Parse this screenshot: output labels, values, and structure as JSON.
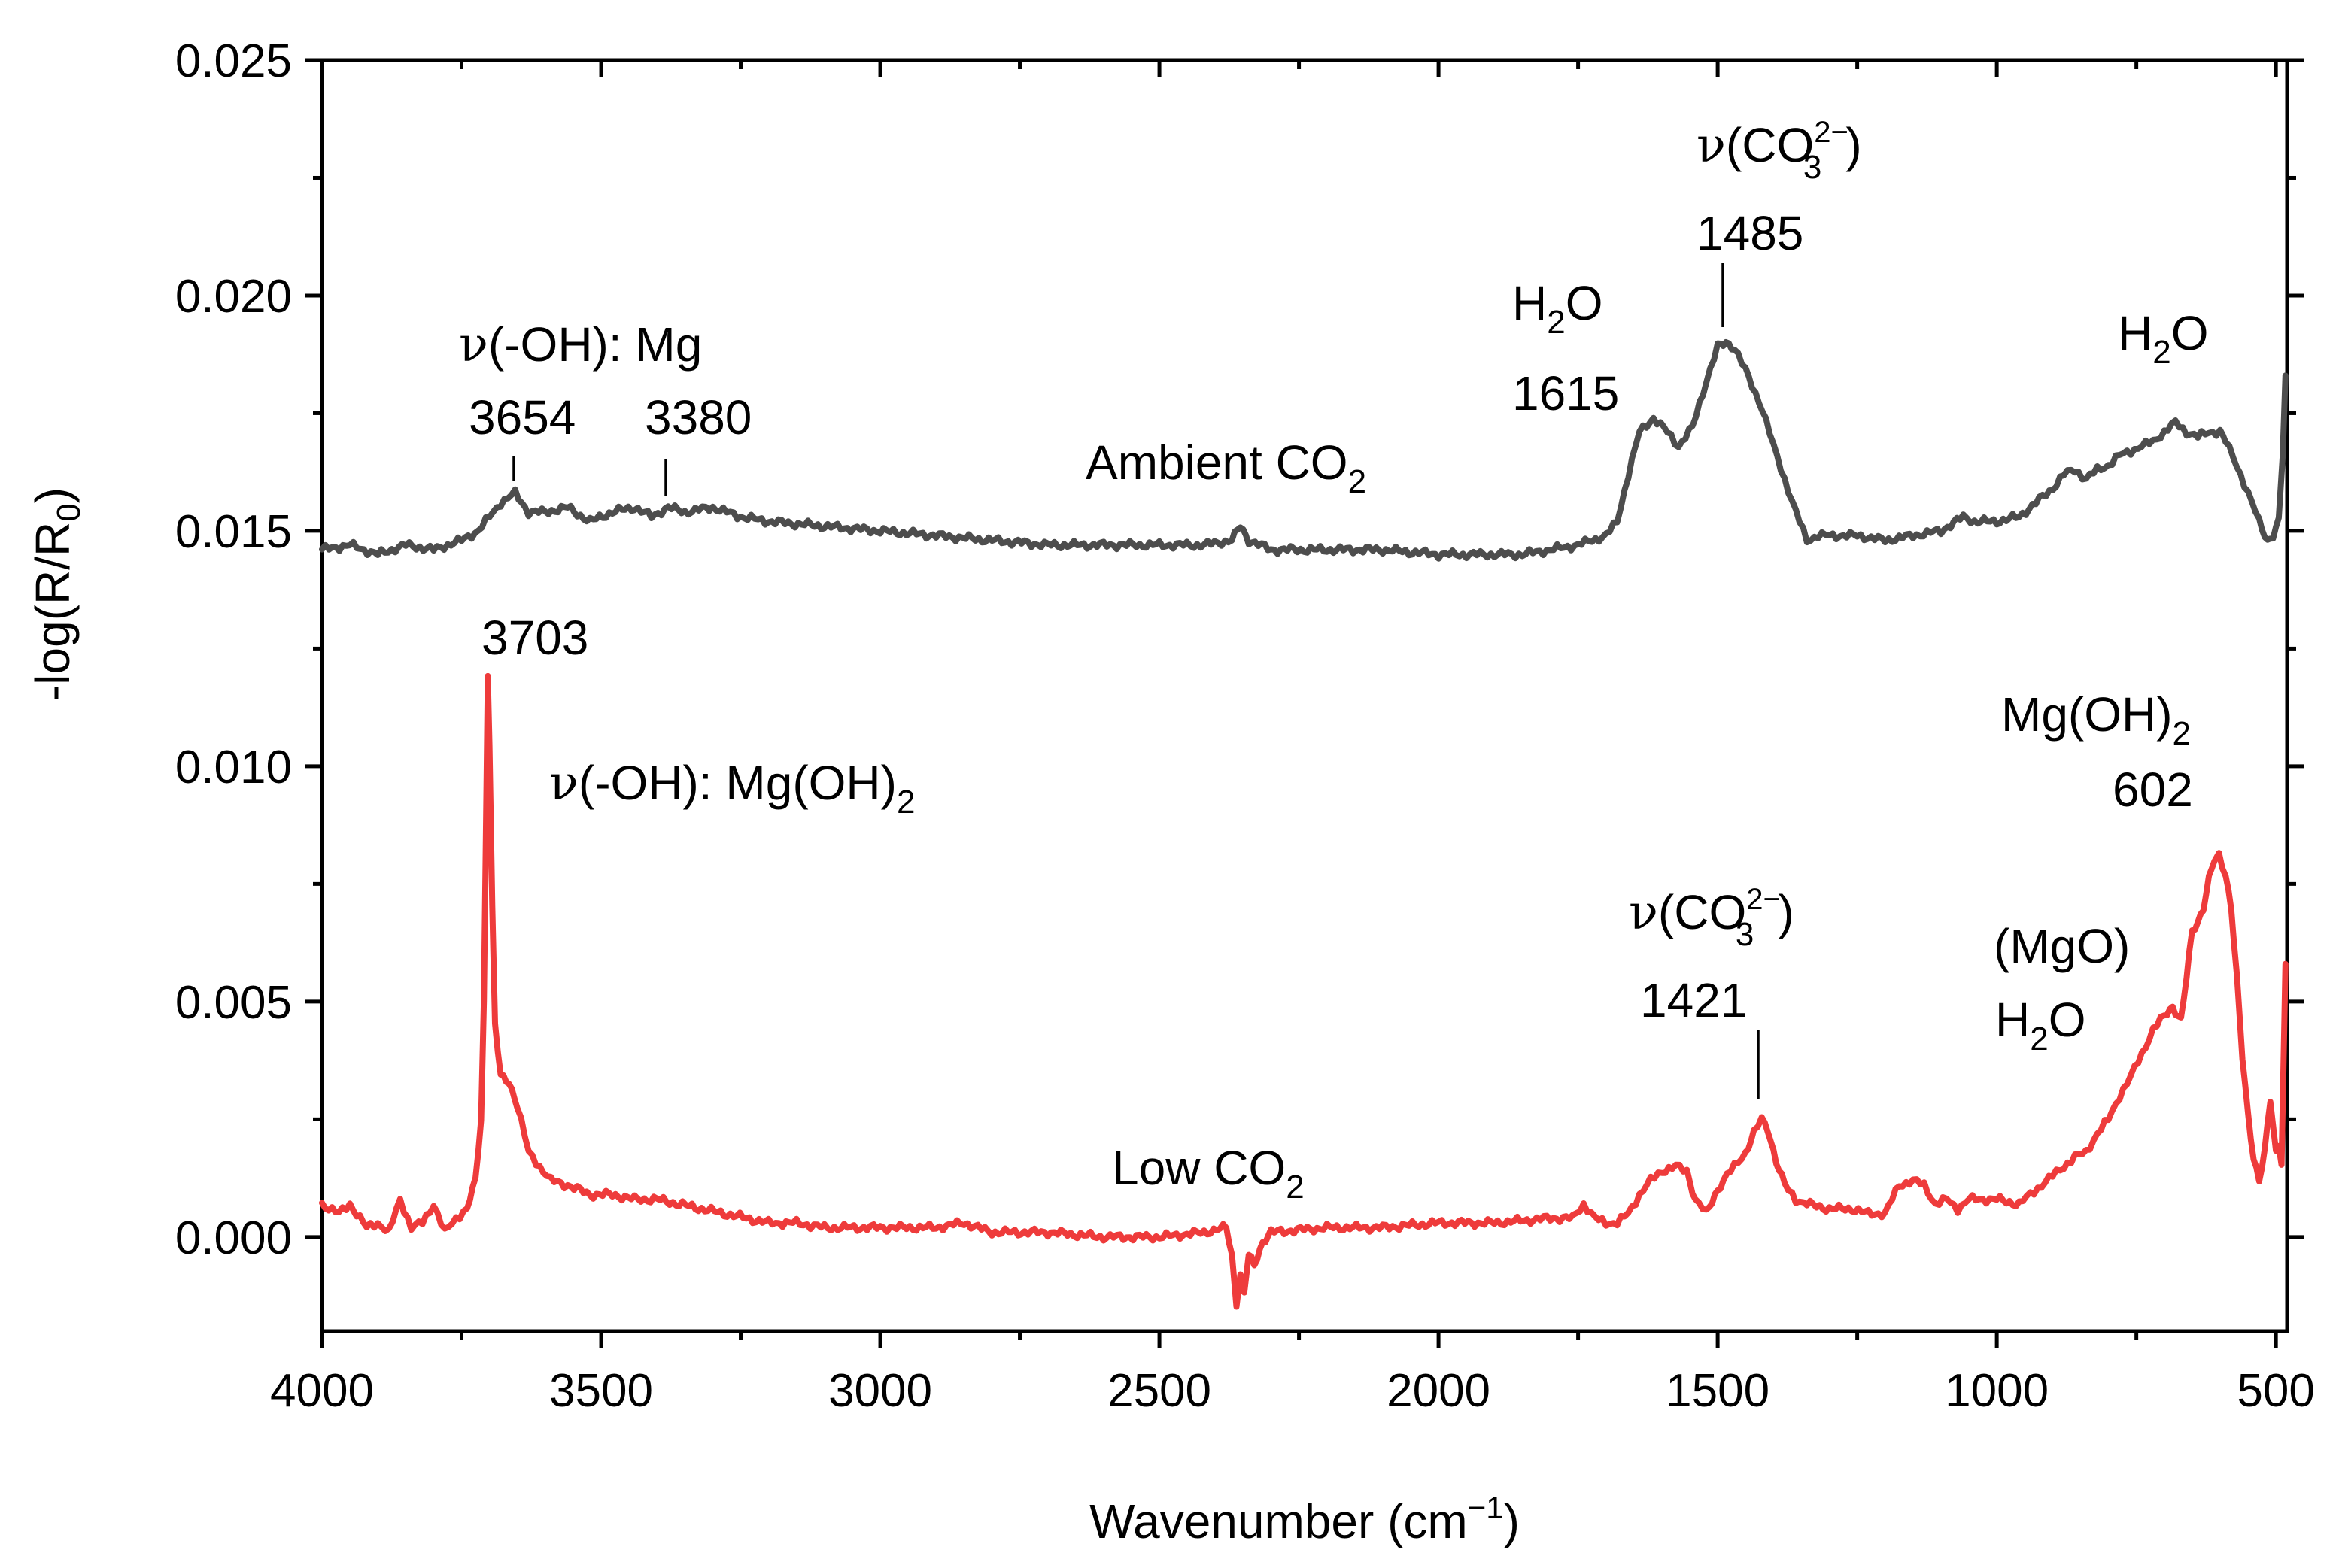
{
  "chart_data": {
    "type": "line",
    "xlabel_main": "Wavenumber (cm",
    "xlabel_sup": "−1",
    "xlabel_close": ")",
    "ylabel_main": "-log(R/R",
    "ylabel_sub": "0",
    "ylabel_close": ")",
    "xlim": [
      4000,
      480
    ],
    "ylim": [
      -0.002,
      0.025
    ],
    "xticks": [
      4000,
      3500,
      3000,
      2500,
      2000,
      1500,
      1000,
      500
    ],
    "xtick_labels": [
      "4000",
      "3500",
      "3000",
      "2500",
      "2000",
      "1500",
      "1000",
      "500"
    ],
    "yticks": [
      0.0,
      0.005,
      0.01,
      0.015,
      0.02,
      0.025
    ],
    "ytick_labels": [
      "0.000",
      "0.005",
      "0.010",
      "0.015",
      "0.020",
      "0.025"
    ],
    "series": [
      {
        "name": "Ambient CO2",
        "color": "#4d4d4d",
        "points": [
          [
            4000,
            0.0146
          ],
          [
            3950,
            0.0147
          ],
          [
            3900,
            0.0145
          ],
          [
            3850,
            0.0147
          ],
          [
            3800,
            0.0146
          ],
          [
            3750,
            0.0148
          ],
          [
            3720,
            0.015
          ],
          [
            3700,
            0.0153
          ],
          [
            3680,
            0.0156
          ],
          [
            3654,
            0.0158
          ],
          [
            3630,
            0.0154
          ],
          [
            3600,
            0.0154
          ],
          [
            3560,
            0.0155
          ],
          [
            3520,
            0.0152
          ],
          [
            3480,
            0.0154
          ],
          [
            3440,
            0.0155
          ],
          [
            3410,
            0.0153
          ],
          [
            3380,
            0.0155
          ],
          [
            3350,
            0.0154
          ],
          [
            3300,
            0.0155
          ],
          [
            3250,
            0.0153
          ],
          [
            3200,
            0.0152
          ],
          [
            3100,
            0.0151
          ],
          [
            3000,
            0.015
          ],
          [
            2900,
            0.0149
          ],
          [
            2800,
            0.0148
          ],
          [
            2700,
            0.0147
          ],
          [
            2600,
            0.0147
          ],
          [
            2500,
            0.0147
          ],
          [
            2420,
            0.0147
          ],
          [
            2370,
            0.0148
          ],
          [
            2355,
            0.0151
          ],
          [
            2340,
            0.0148
          ],
          [
            2300,
            0.0146
          ],
          [
            2200,
            0.0146
          ],
          [
            2100,
            0.0146
          ],
          [
            2000,
            0.0145
          ],
          [
            1950,
            0.0145
          ],
          [
            1900,
            0.0145
          ],
          [
            1850,
            0.0145
          ],
          [
            1800,
            0.0146
          ],
          [
            1750,
            0.0147
          ],
          [
            1700,
            0.0149
          ],
          [
            1680,
            0.0152
          ],
          [
            1660,
            0.0162
          ],
          [
            1640,
            0.0171
          ],
          [
            1615,
            0.0174
          ],
          [
            1590,
            0.0171
          ],
          [
            1570,
            0.0168
          ],
          [
            1545,
            0.0172
          ],
          [
            1520,
            0.0182
          ],
          [
            1500,
            0.0189
          ],
          [
            1485,
            0.019
          ],
          [
            1470,
            0.0189
          ],
          [
            1450,
            0.0184
          ],
          [
            1420,
            0.0176
          ],
          [
            1400,
            0.0168
          ],
          [
            1380,
            0.0161
          ],
          [
            1360,
            0.0154
          ],
          [
            1340,
            0.0148
          ],
          [
            1320,
            0.0149
          ],
          [
            1300,
            0.0149
          ],
          [
            1250,
            0.0149
          ],
          [
            1200,
            0.0148
          ],
          [
            1150,
            0.0149
          ],
          [
            1100,
            0.015
          ],
          [
            1060,
            0.0153
          ],
          [
            1040,
            0.0152
          ],
          [
            1000,
            0.0152
          ],
          [
            960,
            0.0153
          ],
          [
            930,
            0.0156
          ],
          [
            900,
            0.0159
          ],
          [
            880,
            0.0162
          ],
          [
            860,
            0.0163
          ],
          [
            840,
            0.0161
          ],
          [
            820,
            0.0163
          ],
          [
            800,
            0.0164
          ],
          [
            780,
            0.0166
          ],
          [
            760,
            0.0167
          ],
          [
            740,
            0.0168
          ],
          [
            720,
            0.0169
          ],
          [
            700,
            0.0171
          ],
          [
            680,
            0.0173
          ],
          [
            660,
            0.0171
          ],
          [
            640,
            0.017
          ],
          [
            620,
            0.0171
          ],
          [
            600,
            0.0171
          ],
          [
            590,
            0.0169
          ],
          [
            570,
            0.0164
          ],
          [
            550,
            0.0158
          ],
          [
            530,
            0.0152
          ],
          [
            515,
            0.0148
          ],
          [
            505,
            0.0149
          ],
          [
            495,
            0.0152
          ],
          [
            488,
            0.0166
          ],
          [
            483,
            0.0183
          ]
        ]
      },
      {
        "name": "Low CO2",
        "color": "#ee3b3b",
        "points": [
          [
            4000,
            0.0007
          ],
          [
            3970,
            0.0005
          ],
          [
            3950,
            0.0007
          ],
          [
            3920,
            0.0002
          ],
          [
            3900,
            0.0003
          ],
          [
            3880,
            0.0001
          ],
          [
            3860,
            0.0008
          ],
          [
            3840,
            0.0002
          ],
          [
            3820,
            0.0003
          ],
          [
            3800,
            0.0007
          ],
          [
            3780,
            0.0001
          ],
          [
            3760,
            0.0004
          ],
          [
            3740,
            0.0006
          ],
          [
            3725,
            0.0012
          ],
          [
            3715,
            0.0025
          ],
          [
            3710,
            0.005
          ],
          [
            3706,
            0.009
          ],
          [
            3703,
            0.012
          ],
          [
            3700,
            0.0105
          ],
          [
            3695,
            0.007
          ],
          [
            3690,
            0.0045
          ],
          [
            3680,
            0.0034
          ],
          [
            3665,
            0.0033
          ],
          [
            3650,
            0.0028
          ],
          [
            3630,
            0.0018
          ],
          [
            3610,
            0.0015
          ],
          [
            3590,
            0.0012
          ],
          [
            3560,
            0.0011
          ],
          [
            3520,
            0.0009
          ],
          [
            3480,
            0.0009
          ],
          [
            3440,
            0.0008
          ],
          [
            3400,
            0.0008
          ],
          [
            3360,
            0.0007
          ],
          [
            3320,
            0.0006
          ],
          [
            3280,
            0.0005
          ],
          [
            3240,
            0.0004
          ],
          [
            3200,
            0.0003
          ],
          [
            3150,
            0.0003
          ],
          [
            3100,
            0.0002
          ],
          [
            3000,
            0.0002
          ],
          [
            2900,
            0.0002
          ],
          [
            2850,
            0.0003
          ],
          [
            2800,
            0.0001
          ],
          [
            2700,
            0.0001
          ],
          [
            2600,
            0.0
          ],
          [
            2500,
            0.0
          ],
          [
            2420,
            0.0001
          ],
          [
            2380,
            0.0002
          ],
          [
            2370,
            -0.0004
          ],
          [
            2362,
            -0.0014
          ],
          [
            2355,
            -0.0008
          ],
          [
            2348,
            -0.0012
          ],
          [
            2340,
            -0.0004
          ],
          [
            2330,
            -0.0006
          ],
          [
            2315,
            -0.0001
          ],
          [
            2300,
            0.0001
          ],
          [
            2200,
            0.0002
          ],
          [
            2100,
            0.0002
          ],
          [
            2000,
            0.0003
          ],
          [
            1900,
            0.0003
          ],
          [
            1800,
            0.0004
          ],
          [
            1760,
            0.0004
          ],
          [
            1740,
            0.0007
          ],
          [
            1720,
            0.0004
          ],
          [
            1700,
            0.0003
          ],
          [
            1680,
            0.0003
          ],
          [
            1660,
            0.0005
          ],
          [
            1640,
            0.0009
          ],
          [
            1620,
            0.0012
          ],
          [
            1600,
            0.0014
          ],
          [
            1575,
            0.0015
          ],
          [
            1555,
            0.0014
          ],
          [
            1540,
            0.0008
          ],
          [
            1520,
            0.0005
          ],
          [
            1505,
            0.0009
          ],
          [
            1490,
            0.0012
          ],
          [
            1470,
            0.0015
          ],
          [
            1450,
            0.0018
          ],
          [
            1435,
            0.0022
          ],
          [
            1421,
            0.0025
          ],
          [
            1410,
            0.0023
          ],
          [
            1395,
            0.0016
          ],
          [
            1380,
            0.0011
          ],
          [
            1360,
            0.0008
          ],
          [
            1340,
            0.0007
          ],
          [
            1300,
            0.0006
          ],
          [
            1260,
            0.0006
          ],
          [
            1230,
            0.0005
          ],
          [
            1200,
            0.0005
          ],
          [
            1175,
            0.0011
          ],
          [
            1150,
            0.0012
          ],
          [
            1130,
            0.0011
          ],
          [
            1110,
            0.0007
          ],
          [
            1090,
            0.0008
          ],
          [
            1070,
            0.0006
          ],
          [
            1050,
            0.0008
          ],
          [
            1000,
            0.0008
          ],
          [
            960,
            0.0007
          ],
          [
            940,
            0.0009
          ],
          [
            920,
            0.0011
          ],
          [
            900,
            0.0013
          ],
          [
            880,
            0.0015
          ],
          [
            860,
            0.0017
          ],
          [
            840,
            0.0018
          ],
          [
            820,
            0.0022
          ],
          [
            800,
            0.0025
          ],
          [
            780,
            0.003
          ],
          [
            760,
            0.0034
          ],
          [
            740,
            0.0039
          ],
          [
            720,
            0.0044
          ],
          [
            700,
            0.0047
          ],
          [
            685,
            0.0049
          ],
          [
            670,
            0.0046
          ],
          [
            660,
            0.0055
          ],
          [
            650,
            0.0065
          ],
          [
            640,
            0.0067
          ],
          [
            630,
            0.007
          ],
          [
            620,
            0.0076
          ],
          [
            610,
            0.008
          ],
          [
            602,
            0.0081
          ],
          [
            590,
            0.0077
          ],
          [
            580,
            0.007
          ],
          [
            570,
            0.0055
          ],
          [
            560,
            0.0038
          ],
          [
            550,
            0.0026
          ],
          [
            540,
            0.0017
          ],
          [
            530,
            0.0012
          ],
          [
            520,
            0.0018
          ],
          [
            510,
            0.0029
          ],
          [
            500,
            0.0018
          ],
          [
            495,
            0.002
          ],
          [
            490,
            0.0016
          ],
          [
            485,
            0.0045
          ],
          [
            483,
            0.0058
          ]
        ]
      }
    ],
    "annotations": {
      "oh_mg": {
        "nu": "ν",
        "rest": "(-OH): Mg"
      },
      "peak_3654": "3654",
      "peak_3380": "3380",
      "ambient_label": {
        "main": "Ambient CO",
        "sub": "2"
      },
      "h2o_top_left": {
        "h": "H",
        "sub": "2",
        "o": "O"
      },
      "peak_1615": "1615",
      "co3_top": {
        "nu": "ν",
        "open": "(CO",
        "sup": "2−",
        "sub": "3",
        "close": ")"
      },
      "peak_1485": "1485",
      "h2o_top_right": {
        "h": "H",
        "sub": "2",
        "o": "O"
      },
      "peak_3703": "3703",
      "oh_mgoh2": {
        "nu": "ν",
        "rest": "(-OH): Mg(OH)",
        "sub": "2"
      },
      "mgoh2_right": {
        "main": "Mg(OH)",
        "sub": "2"
      },
      "peak_602": "602",
      "co3_bottom": {
        "nu": "ν",
        "open": "(CO",
        "sup": "2−",
        "sub": "3",
        "close": ")"
      },
      "peak_1421": "1421",
      "mgo": "(MgO)",
      "h2o_bottom": {
        "h": "H",
        "sub": "2",
        "o": "O"
      },
      "low_label": {
        "main": "Low CO",
        "sub": "2"
      }
    }
  }
}
